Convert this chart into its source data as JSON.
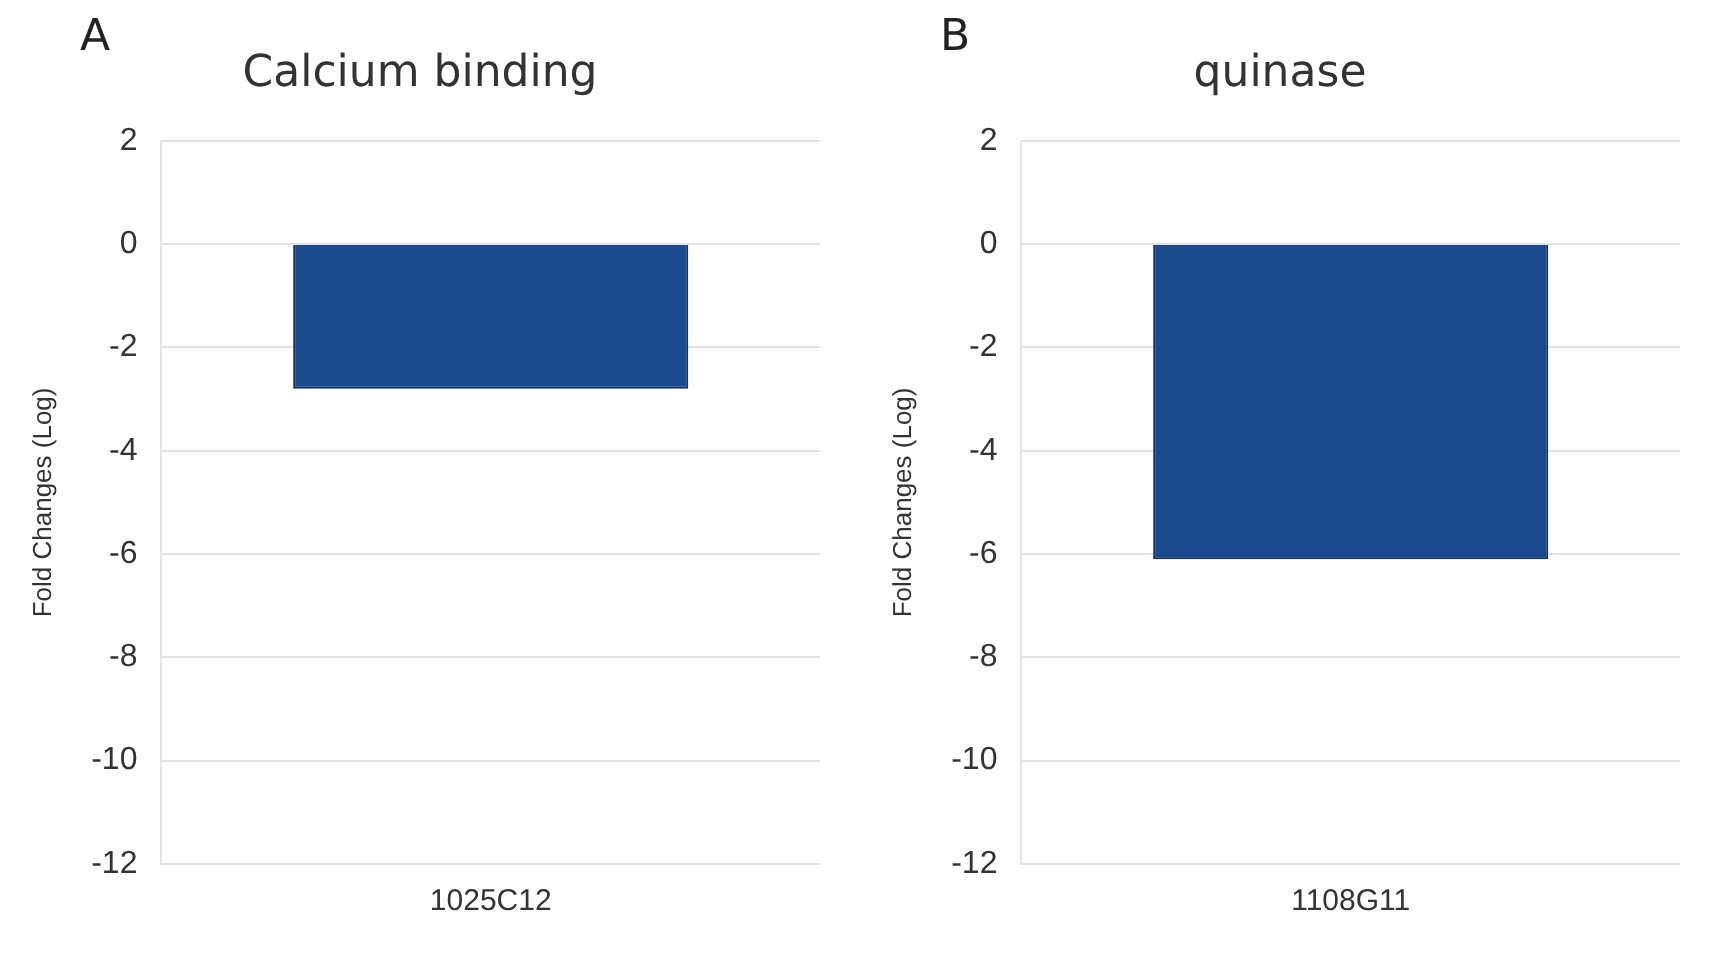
{
  "chart_data": [
    {
      "type": "bar",
      "title": "Calcium binding",
      "annotations": [
        "A"
      ],
      "ylabel": "Fold Changes (Log)",
      "categories": [
        "1025C12"
      ],
      "values": [
        -2.8
      ],
      "color": "#1c4a8e",
      "ylim": [
        -12,
        2
      ],
      "yticks": [
        -12,
        -10,
        -8,
        -6,
        -4,
        -2,
        0,
        2
      ],
      "grid": "y",
      "legend": false
    },
    {
      "type": "bar",
      "title": "quinase",
      "annotations": [
        "B"
      ],
      "ylabel": "Fold Changes (Log)",
      "categories": [
        "1108G11"
      ],
      "values": [
        -6.1
      ],
      "color": "#1c4a8e",
      "ylim": [
        -12,
        2
      ],
      "yticks": [
        -12,
        -10,
        -8,
        -6,
        -4,
        -2,
        0,
        2
      ],
      "grid": "y",
      "legend": false
    }
  ]
}
